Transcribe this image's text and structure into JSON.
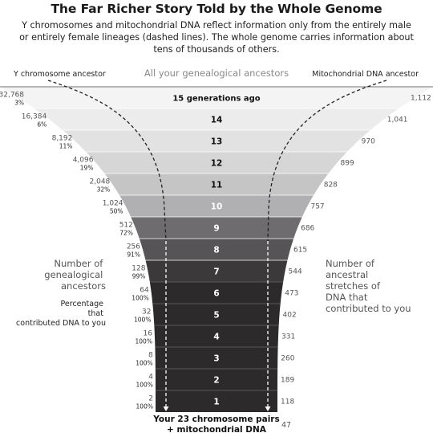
{
  "header": {
    "title": "The Far Richer Story Told by the Whole Genome",
    "subtitle": "Y chromosomes and mitochondrial DNA reflect information only from the entirely male or entirely female lineages (dashed lines). The whole genome carries information about tens of thousands of others."
  },
  "top_labels": {
    "left": "Y chromosome ancestor",
    "center": "All your genealogical ancestors",
    "right": "Mitochondrial DNA ancestor"
  },
  "side_labels": {
    "left_title": "Number of genealogical ancestors",
    "left_sub": "Percentage that contributed DNA to you",
    "right_title": "Number of ancestral stretches of DNA that contributed to you"
  },
  "bottom_label": {
    "line1": "Your 23 chromosome pairs",
    "line2": "+ mitochondrial DNA",
    "value": "47"
  },
  "colors": {
    "top_band": "#f4f4f4",
    "dark_band": "#2d2a2b",
    "dashed_line": "#222222"
  },
  "chart_data": {
    "type": "table",
    "rows": [
      {
        "gen": "15 generations ago",
        "ancestors": "32,768",
        "pct": "3%",
        "segments": "1,112"
      },
      {
        "gen": "14",
        "ancestors": "16,384",
        "pct": "6%",
        "segments": "1,041"
      },
      {
        "gen": "13",
        "ancestors": "8,192",
        "pct": "11%",
        "segments": "970"
      },
      {
        "gen": "12",
        "ancestors": "4,096",
        "pct": "19%",
        "segments": "899"
      },
      {
        "gen": "11",
        "ancestors": "2,048",
        "pct": "32%",
        "segments": "828"
      },
      {
        "gen": "10",
        "ancestors": "1,024",
        "pct": "50%",
        "segments": "757"
      },
      {
        "gen": "9",
        "ancestors": "512",
        "pct": "72%",
        "segments": "686"
      },
      {
        "gen": "8",
        "ancestors": "256",
        "pct": "91%",
        "segments": "615"
      },
      {
        "gen": "7",
        "ancestors": "128",
        "pct": "99%",
        "segments": "544"
      },
      {
        "gen": "6",
        "ancestors": "64",
        "pct": "100%",
        "segments": "473"
      },
      {
        "gen": "5",
        "ancestors": "32",
        "pct": "100%",
        "segments": "402"
      },
      {
        "gen": "4",
        "ancestors": "16",
        "pct": "100%",
        "segments": "331"
      },
      {
        "gen": "3",
        "ancestors": "8",
        "pct": "100%",
        "segments": "260"
      },
      {
        "gen": "2",
        "ancestors": "4",
        "pct": "100%",
        "segments": "189"
      },
      {
        "gen": "1",
        "ancestors": "2",
        "pct": "100%",
        "segments": "118"
      }
    ]
  }
}
